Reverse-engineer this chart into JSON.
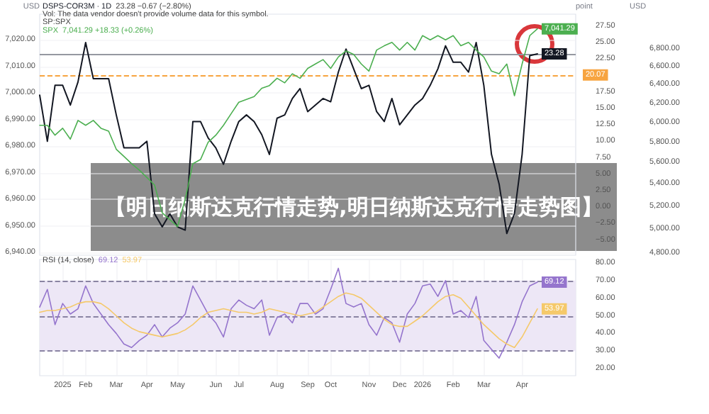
{
  "chart_data": [
    {
      "type": "line",
      "title": "【明日纳斯达克行情走势,明日纳斯达克行情走势图】",
      "ylabel": "USD",
      "y2label": "USD",
      "y3label": "point",
      "annotations": [
        "23.28 −0.67 (−2.80%)",
        "Vol: The data vendor doesn't provide volume data for this symbol.",
        "SP:SPX",
        "7,041.29 +18.33 (+0.26%)"
      ],
      "categories": [
        null,
        null,
        null,
        null,
        null,
        null,
        null,
        null,
        null,
        null,
        null,
        null,
        null,
        null,
        null,
        null,
        null,
        null,
        null,
        null,
        null,
        null,
        null,
        null,
        null,
        null,
        null,
        null,
        null,
        null,
        null,
        null,
        null,
        null,
        null,
        null,
        null,
        null,
        null,
        null,
        null,
        null,
        null,
        null,
        null,
        null,
        null,
        null,
        null,
        null,
        null,
        null,
        null,
        null,
        null,
        null,
        null,
        null,
        null,
        null,
        null,
        null,
        null,
        null,
        null,
        null,
        null,
        null,
        null,
        null,
        null
      ],
      "series": [
        {
          "name": "DSPS-COR3M · 1D",
          "color": "#131722",
          "axis": "y3",
          "values": [
            17,
            10,
            18.5,
            18.5,
            15.5,
            19,
            25,
            19.5,
            19.5,
            19.5,
            14,
            9,
            9,
            9,
            10,
            -1,
            -3,
            -1,
            -3,
            -3.5,
            13,
            13,
            10.5,
            9,
            6.5,
            10,
            13,
            14,
            13,
            11,
            8,
            13.5,
            14,
            16.5,
            18,
            14.5,
            15.5,
            16.5,
            16,
            20.5,
            24,
            21,
            18,
            18.5,
            14.5,
            13,
            16.5,
            12.5,
            14,
            15.5,
            16.5,
            18.5,
            21,
            24.5,
            22,
            22,
            20.5,
            25,
            18.5,
            8,
            3.5,
            -4,
            -1,
            8,
            23,
            23.28,
            null,
            null,
            null,
            null,
            null
          ],
          "value_labels": [
            null,
            null,
            null,
            null,
            null,
            null,
            null,
            null,
            null,
            null,
            null,
            null,
            null,
            null,
            null,
            null,
            null,
            null,
            null,
            null,
            null,
            null,
            null,
            null,
            null,
            null,
            null,
            null,
            null,
            null,
            null,
            null,
            null,
            null,
            null,
            null,
            null,
            null,
            null,
            null,
            null,
            null,
            null,
            null,
            null,
            null,
            null,
            null,
            null,
            null,
            null,
            null,
            null,
            null,
            null,
            null,
            null,
            null,
            null,
            null,
            null,
            null,
            null,
            null,
            null,
            "23.28",
            null,
            null,
            null,
            null,
            null
          ]
        },
        {
          "name": "SPX",
          "color": "#4caf50",
          "axis": "y2",
          "values": [
            5970,
            5970,
            5870,
            5940,
            5830,
            6020,
            5970,
            6020,
            5940,
            5910,
            5730,
            5660,
            5590,
            5530,
            5460,
            5390,
            5140,
            5080,
            5020,
            5260,
            5590,
            5630,
            5800,
            5870,
            5970,
            6090,
            6210,
            6240,
            6270,
            6360,
            6390,
            6470,
            6420,
            6520,
            6470,
            6580,
            6630,
            6680,
            6580,
            6710,
            6780,
            6740,
            6630,
            6550,
            6790,
            6840,
            6880,
            6790,
            6880,
            6790,
            6960,
            6910,
            6960,
            6910,
            6960,
            6840,
            6880,
            6790,
            6710,
            6550,
            6520,
            6630,
            6280,
            6630,
            6960,
            7041.29,
            null,
            null,
            null,
            null,
            null
          ],
          "value_labels": [
            null,
            null,
            null,
            null,
            null,
            null,
            null,
            null,
            null,
            null,
            null,
            null,
            null,
            null,
            null,
            null,
            null,
            null,
            null,
            null,
            null,
            null,
            null,
            null,
            null,
            null,
            null,
            null,
            null,
            null,
            null,
            null,
            null,
            null,
            null,
            null,
            null,
            null,
            null,
            null,
            null,
            null,
            null,
            null,
            null,
            null,
            null,
            null,
            null,
            null,
            null,
            null,
            null,
            null,
            null,
            null,
            null,
            null,
            null,
            null,
            null,
            null,
            null,
            null,
            null,
            "7,041.29",
            null,
            null,
            null,
            null,
            null
          ]
        }
      ],
      "ref_lines": [
        {
          "axis": "y3",
          "value": 23.28,
          "color": "#9598a1",
          "line_style": "solid"
        },
        {
          "axis": "y3",
          "value": 20.07,
          "label": "20.07",
          "color": "#f7a440",
          "line_style": "dashed"
        }
      ],
      "ylim": [
        6939,
        7029.6
      ],
      "yticks": [
        {
          "value": 6940,
          "label": "6,940.00"
        },
        {
          "value": 6950,
          "label": "6,950.00"
        },
        {
          "value": 6960,
          "label": "6,960.00"
        },
        {
          "value": 6970,
          "label": "6,970.00"
        },
        {
          "value": 6980,
          "label": "6,980.00"
        },
        {
          "value": 6990,
          "label": "6,990.00"
        },
        {
          "value": 7000,
          "label": "7,000.00"
        },
        {
          "value": 7010,
          "label": "7,010.00"
        },
        {
          "value": 7020,
          "label": "7,020.00"
        }
      ],
      "y2lim": [
        4780,
        7220
      ],
      "y2ticks": [
        {
          "value": 4800,
          "label": "4,800.00"
        },
        {
          "value": 5000,
          "label": "5,000.00"
        },
        {
          "value": 5200,
          "label": "5,200.00"
        },
        {
          "value": 5400,
          "label": "5,400.00"
        },
        {
          "value": 5600,
          "label": "5,600.00"
        },
        {
          "value": 5800,
          "label": "5,800.00"
        },
        {
          "value": 6000,
          "label": "6,000.00"
        },
        {
          "value": 6200,
          "label": "6,200.00"
        },
        {
          "value": 6400,
          "label": "6,400.00"
        },
        {
          "value": 6600,
          "label": "6,600.00"
        },
        {
          "value": 6800,
          "label": "6,800.00"
        }
      ],
      "y3lim": [
        -7.3,
        29.3
      ],
      "y3ticks": [
        {
          "value": -5,
          "label": "−5.00"
        },
        {
          "value": -2.5,
          "label": "−2.50"
        },
        {
          "value": 0,
          "label": "0.00"
        },
        {
          "value": 2.5,
          "label": "2.50"
        },
        {
          "value": 5,
          "label": "5.00"
        },
        {
          "value": 7.5,
          "label": "7.50"
        },
        {
          "value": 10,
          "label": "10.00"
        },
        {
          "value": 12.5,
          "label": "12.50"
        },
        {
          "value": 15,
          "label": "15.00"
        },
        {
          "value": 17.5,
          "label": "17.50"
        },
        {
          "value": 22.5,
          "label": "22.50"
        },
        {
          "value": 25,
          "label": "25.00"
        },
        {
          "value": 27.5,
          "label": "27.50"
        }
      ],
      "log": "y2",
      "grid": true,
      "legend": "top left",
      "tick_labels": "y",
      "marker": "none",
      "line_style": "solid"
    },
    {
      "type": "line",
      "annotations": [
        "RSI (14, close)",
        "69.12",
        "53.97"
      ],
      "categories": [
        null,
        null,
        null,
        "2025",
        null,
        null,
        "Feb",
        null,
        null,
        null,
        "Mar",
        null,
        null,
        null,
        "Apr",
        null,
        null,
        null,
        "May",
        null,
        null,
        null,
        null,
        "Jun",
        null,
        null,
        "Jul",
        null,
        null,
        null,
        null,
        "Aug",
        null,
        null,
        null,
        "Sep",
        null,
        null,
        "Oct",
        null,
        null,
        null,
        null,
        "Nov",
        null,
        null,
        null,
        "Dec",
        null,
        null,
        "2026",
        null,
        null,
        null,
        "Feb",
        null,
        null,
        null,
        "Mar",
        null,
        null,
        null,
        null,
        "Apr",
        null,
        null,
        null,
        null,
        null,
        null,
        null
      ],
      "series": [
        {
          "color": "#9575cd",
          "values": [
            55,
            65,
            45,
            57,
            51,
            54,
            67,
            57,
            51,
            45,
            40,
            34,
            32,
            36,
            39,
            45,
            38,
            43,
            46,
            51,
            67,
            59,
            51,
            46,
            38,
            54,
            59,
            56,
            54,
            59,
            39,
            49,
            51,
            46,
            57,
            57,
            51,
            54,
            65,
            77,
            57,
            55,
            57,
            45,
            39,
            49,
            46,
            35,
            51,
            57,
            67,
            68,
            61,
            70,
            51,
            53,
            49,
            61,
            36,
            31,
            26,
            35,
            45,
            58,
            67,
            69.12,
            null,
            null,
            null,
            null,
            null
          ],
          "value_labels": [
            null,
            null,
            null,
            null,
            null,
            null,
            null,
            null,
            null,
            null,
            null,
            null,
            null,
            null,
            null,
            null,
            null,
            null,
            null,
            null,
            null,
            null,
            null,
            null,
            null,
            null,
            null,
            null,
            null,
            null,
            null,
            null,
            null,
            null,
            null,
            null,
            null,
            null,
            null,
            null,
            null,
            null,
            null,
            null,
            null,
            null,
            null,
            null,
            null,
            null,
            null,
            null,
            null,
            null,
            null,
            null,
            null,
            null,
            null,
            null,
            null,
            null,
            null,
            null,
            null,
            "69.12",
            null,
            null,
            null,
            null,
            null
          ]
        },
        {
          "color": "#f5c96a",
          "values": [
            52,
            53,
            53,
            54,
            55,
            57,
            58,
            58,
            57,
            54,
            50,
            46,
            43,
            41,
            40,
            39,
            38,
            39,
            40,
            42,
            45,
            49,
            52,
            53,
            54,
            53,
            52,
            52,
            51,
            52,
            54,
            53,
            52,
            51,
            50,
            51,
            52,
            55,
            58,
            61,
            63,
            62,
            60,
            56,
            52,
            48,
            45,
            44,
            44,
            47,
            50,
            54,
            58,
            61,
            62,
            60,
            55,
            50,
            45,
            41,
            37,
            34,
            32,
            38,
            46,
            53.97,
            null,
            null,
            null,
            null,
            null
          ],
          "value_labels": [
            null,
            null,
            null,
            null,
            null,
            null,
            null,
            null,
            null,
            null,
            null,
            null,
            null,
            null,
            null,
            null,
            null,
            null,
            null,
            null,
            null,
            null,
            null,
            null,
            null,
            null,
            null,
            null,
            null,
            null,
            null,
            null,
            null,
            null,
            null,
            null,
            null,
            null,
            null,
            null,
            null,
            null,
            null,
            null,
            null,
            null,
            null,
            null,
            null,
            null,
            null,
            null,
            null,
            null,
            null,
            null,
            null,
            null,
            null,
            null,
            null,
            null,
            null,
            null,
            null,
            "53.97",
            null,
            null,
            null,
            null,
            null
          ]
        }
      ],
      "bands": [
        {
          "axis": "y",
          "from": 30,
          "to": 70,
          "color": "#ede7f6"
        }
      ],
      "ref_lines": [
        {
          "axis": "y",
          "value": 70,
          "color": "#8a84a3",
          "line_style": "dashed"
        },
        {
          "axis": "y",
          "value": 50,
          "color": "#8a84a3",
          "line_style": "dashed"
        },
        {
          "axis": "y",
          "value": 30,
          "color": "#8a84a3",
          "line_style": "dashed"
        }
      ],
      "ylim": [
        16,
        82
      ],
      "yticks": [
        {
          "value": 20,
          "label": "20.00"
        },
        {
          "value": 30,
          "label": "30.00"
        },
        {
          "value": 40,
          "label": "40.00"
        },
        {
          "value": 50,
          "label": "50.00"
        },
        {
          "value": 60,
          "label": "60.00"
        },
        {
          "value": 70,
          "label": "70.00"
        },
        {
          "value": 80,
          "label": "80.00"
        }
      ],
      "grid": "x",
      "marker": "none",
      "line_style": "solid"
    }
  ]
}
